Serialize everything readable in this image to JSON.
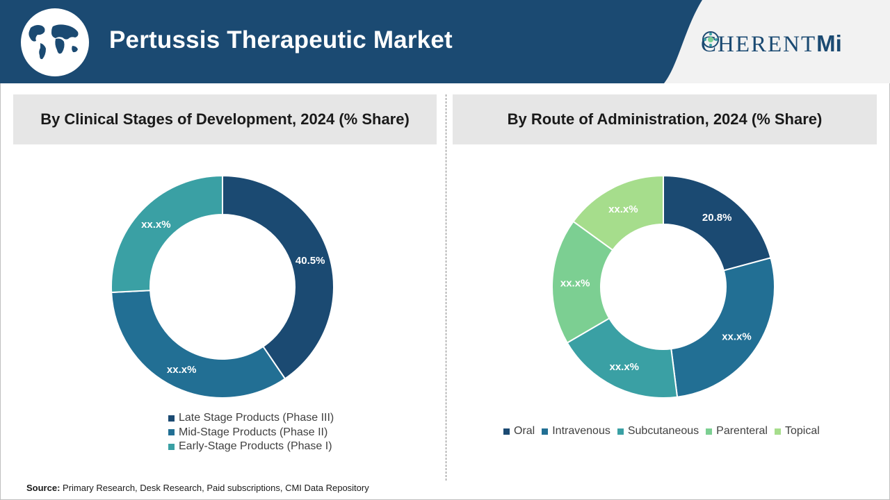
{
  "header": {
    "title": "Pertussis Therapeutic Market",
    "logo_main": "C",
    "logo_rest": "HERENT",
    "logo_mi": "Mi"
  },
  "colors": {
    "header_bg": "#1b4a72",
    "slice_dark_navy": "#1b4a72",
    "slice_mid_blue": "#226f94",
    "slice_teal": "#3aa0a4",
    "slice_green": "#7ccf92",
    "slice_light_green": "#a6dd8c"
  },
  "icons": {
    "globe": "globe-icon"
  },
  "source": {
    "label": "Source:",
    "text": " Primary Research, Desk Research, Paid subscriptions, CMI Data Repository"
  },
  "chart_data": [
    {
      "type": "pie",
      "title": "By Clinical Stages of Development, 2024 (% Share)",
      "labels": [
        "Late Stage Products (Phase III)",
        "Mid-Stage Products (Phase II)",
        "Early-Stage Products (Phase I)"
      ],
      "values": [
        40.5,
        33.7,
        25.8
      ],
      "display_labels": [
        "40.5%",
        "xx.x%",
        "xx.x%"
      ],
      "colors": [
        "#1b4a72",
        "#226f94",
        "#3aa0a4"
      ],
      "legend_position": "bottom"
    },
    {
      "type": "pie",
      "title": "By Route of Administration, 2024 (% Share)",
      "labels": [
        "Oral",
        "Intravenous",
        "Subcutaneous",
        "Parenteral",
        "Topical"
      ],
      "values": [
        20.8,
        27.2,
        18.6,
        18.4,
        15.0
      ],
      "display_labels": [
        "20.8%",
        "xx.x%",
        "xx.x%",
        "xx.x%",
        "xx.x%"
      ],
      "colors": [
        "#1b4a72",
        "#226f94",
        "#3aa0a4",
        "#7ccf92",
        "#a6dd8c"
      ],
      "legend_position": "bottom"
    }
  ]
}
